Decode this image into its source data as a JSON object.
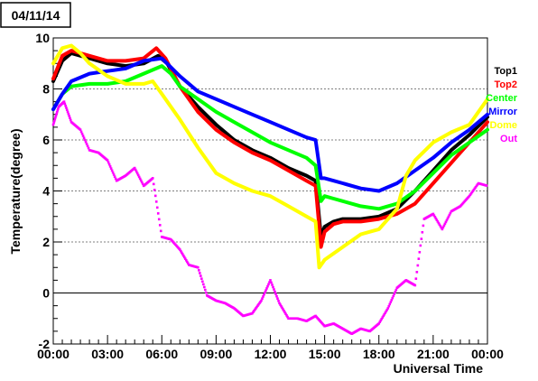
{
  "date_label": "04/11/14",
  "chart_data": {
    "type": "line",
    "title": "04/11/14",
    "xlabel": "Universal Time",
    "ylabel": "Temperature(degree)",
    "xlim": [
      0,
      24
    ],
    "ylim": [
      -2,
      10
    ],
    "x_ticks": [
      "00:00",
      "03:00",
      "06:00",
      "09:00",
      "12:00",
      "15:00",
      "18:00",
      "21:00",
      "00:00"
    ],
    "y_ticks": [
      "-2",
      "0",
      "2",
      "4",
      "6",
      "8",
      "10"
    ],
    "grid": "horizontal dotted",
    "legend_position": "right",
    "series": [
      {
        "name": "Top1",
        "color": "#000000",
        "x": [
          0,
          0.5,
          1,
          2,
          3,
          4,
          5,
          5.8,
          6.3,
          7,
          8,
          9,
          10,
          11,
          12,
          13,
          14,
          14.5,
          14.8,
          15,
          15.5,
          16,
          17,
          18,
          19,
          20,
          21,
          22,
          23,
          24
        ],
        "y": [
          8.3,
          9.1,
          9.4,
          9.2,
          9.0,
          8.9,
          9.0,
          9.3,
          9.0,
          8.1,
          7.3,
          6.6,
          6.0,
          5.6,
          5.3,
          4.9,
          4.6,
          4.4,
          2.2,
          2.6,
          2.8,
          2.9,
          2.9,
          3.0,
          3.3,
          4.0,
          4.8,
          5.6,
          6.2,
          6.9
        ]
      },
      {
        "name": "Top2",
        "color": "#ff0000",
        "x": [
          0,
          0.5,
          1,
          2,
          3,
          4,
          5,
          5.7,
          6.2,
          7,
          8,
          9,
          10,
          11,
          12,
          13,
          14,
          14.5,
          14.8,
          15,
          15.5,
          16,
          17,
          18,
          19,
          20,
          21,
          22,
          23,
          24
        ],
        "y": [
          8.4,
          9.3,
          9.5,
          9.3,
          9.1,
          9.1,
          9.2,
          9.6,
          9.2,
          8.1,
          7.1,
          6.4,
          5.9,
          5.5,
          5.2,
          4.8,
          4.4,
          4.2,
          1.8,
          2.4,
          2.7,
          2.8,
          2.8,
          2.9,
          3.1,
          3.5,
          4.3,
          5.1,
          5.9,
          6.7
        ]
      },
      {
        "name": "Center",
        "color": "#00ff00",
        "x": [
          0,
          0.5,
          1,
          2,
          3,
          4,
          5,
          6,
          6.5,
          7,
          8,
          9,
          10,
          11,
          12,
          13,
          14,
          14.5,
          14.8,
          15,
          15.5,
          16,
          17,
          18,
          19,
          20,
          21,
          22,
          23,
          24
        ],
        "y": [
          7.2,
          7.8,
          8.1,
          8.2,
          8.2,
          8.3,
          8.6,
          8.9,
          8.6,
          8.1,
          7.6,
          7.1,
          6.7,
          6.3,
          5.9,
          5.6,
          5.3,
          5.0,
          3.6,
          3.8,
          3.7,
          3.6,
          3.4,
          3.3,
          3.5,
          4.0,
          4.7,
          5.4,
          5.9,
          6.4
        ]
      },
      {
        "name": "Mirror",
        "color": "#0000ff",
        "x": [
          0,
          0.5,
          1,
          2,
          3,
          4,
          5,
          6,
          7,
          8,
          9,
          10,
          11,
          12,
          13,
          14,
          14.5,
          14.8,
          15,
          15.5,
          16,
          17,
          18,
          19,
          20,
          21,
          22,
          23,
          24
        ],
        "y": [
          7.2,
          7.8,
          8.3,
          8.6,
          8.7,
          8.8,
          9.1,
          9.2,
          8.5,
          7.9,
          7.6,
          7.3,
          7.0,
          6.7,
          6.4,
          6.1,
          6.0,
          4.5,
          4.5,
          4.4,
          4.3,
          4.1,
          4.0,
          4.3,
          4.8,
          5.3,
          5.9,
          6.4,
          7.0
        ]
      },
      {
        "name": "Dome",
        "color": "#ffff00",
        "x": [
          0,
          0.5,
          1,
          1.5,
          2,
          3,
          4,
          5,
          5.5,
          6,
          7,
          8,
          9,
          10,
          11,
          12,
          13,
          14,
          14.5,
          14.7,
          15,
          16,
          17,
          18,
          19,
          19.5,
          20,
          21,
          22,
          23,
          24
        ],
        "y": [
          9.0,
          9.6,
          9.7,
          9.4,
          9.0,
          8.5,
          8.2,
          8.2,
          8.3,
          7.8,
          6.8,
          5.7,
          4.7,
          4.3,
          4.0,
          3.8,
          3.4,
          3.0,
          2.8,
          1.0,
          1.3,
          1.8,
          2.3,
          2.5,
          3.3,
          4.6,
          5.2,
          5.9,
          6.3,
          6.6,
          7.6
        ]
      },
      {
        "name": "Out",
        "color": "#ff00ff",
        "x": [
          0,
          0.3,
          0.6,
          1,
          1.5,
          2,
          2.5,
          3,
          3.5,
          4,
          4.5,
          5,
          5.5,
          6,
          6.5,
          7,
          7.5,
          8,
          8.5,
          9,
          9.5,
          10,
          10.5,
          11,
          11.5,
          12,
          12.5,
          13,
          13.5,
          14,
          14.5,
          15,
          15.5,
          16,
          16.5,
          17,
          17.5,
          18,
          18.5,
          19,
          19.5,
          20,
          20.5,
          21,
          21.5,
          22,
          22.5,
          23,
          23.5,
          24
        ],
        "y": [
          6.6,
          7.3,
          7.5,
          6.7,
          6.4,
          5.6,
          5.5,
          5.2,
          4.4,
          4.6,
          4.9,
          4.2,
          4.5,
          2.2,
          2.1,
          1.7,
          1.1,
          1.0,
          -0.1,
          -0.3,
          -0.4,
          -0.6,
          -0.9,
          -0.8,
          -0.3,
          0.5,
          -0.4,
          -1.0,
          -1.0,
          -1.1,
          -0.9,
          -1.3,
          -1.2,
          -1.4,
          -1.6,
          -1.4,
          -1.5,
          -1.2,
          -0.6,
          0.2,
          0.5,
          0.3,
          2.9,
          3.1,
          2.5,
          3.2,
          3.4,
          3.8,
          4.3,
          4.2
        ]
      }
    ]
  }
}
